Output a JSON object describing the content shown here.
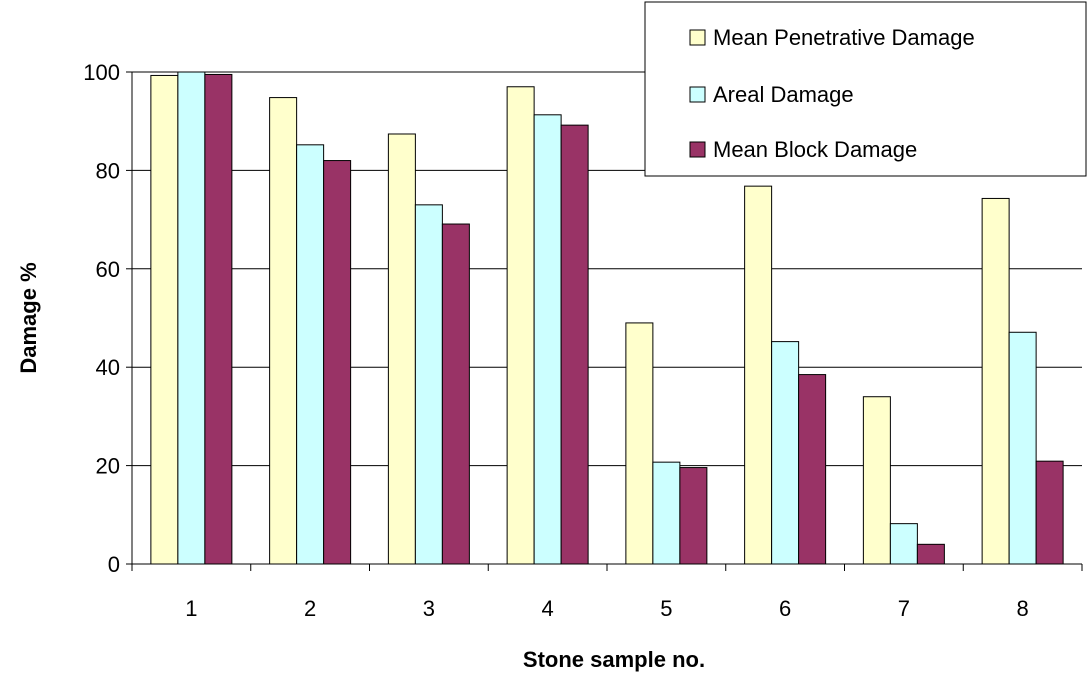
{
  "chart_data": {
    "type": "bar",
    "title": "",
    "xlabel": "Stone sample no.",
    "ylabel": "Damage %",
    "categories": [
      "1",
      "2",
      "3",
      "4",
      "5",
      "6",
      "7",
      "8"
    ],
    "ylim": [
      0,
      100
    ],
    "yticks": [
      "0",
      "20",
      "40",
      "60",
      "80",
      "100"
    ],
    "grid": true,
    "legend_position": "top-right",
    "series": [
      {
        "name": "Mean Penetrative Damage",
        "color": "#ffffcc",
        "values": [
          99.3,
          94.8,
          87.4,
          97.0,
          49.0,
          76.8,
          34.0,
          74.3
        ]
      },
      {
        "name": "Areal Damage",
        "color": "#ccffff",
        "values": [
          100.0,
          85.2,
          73.0,
          91.3,
          20.7,
          45.2,
          8.2,
          47.1
        ]
      },
      {
        "name": "Mean Block Damage",
        "color": "#993366",
        "values": [
          99.5,
          82.0,
          69.1,
          89.2,
          19.6,
          38.5,
          4.0,
          20.9
        ]
      }
    ]
  }
}
